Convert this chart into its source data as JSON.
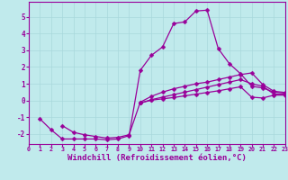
{
  "background_color": "#c0eaec",
  "grid_color": "#a8d8dc",
  "line_color": "#990099",
  "marker": "D",
  "markersize": 2.5,
  "linewidth": 0.9,
  "xlabel": "Windchill (Refroidissement éolien,°C)",
  "xlabel_fontsize": 6.5,
  "ytick_labels": [
    "-2",
    "-1",
    "0",
    "1",
    "2",
    "3",
    "4",
    "5"
  ],
  "ytick_vals": [
    -2,
    -1,
    0,
    1,
    2,
    3,
    4,
    5
  ],
  "xtick_vals": [
    0,
    1,
    2,
    3,
    4,
    5,
    6,
    7,
    8,
    9,
    10,
    11,
    12,
    13,
    14,
    15,
    16,
    17,
    18,
    19,
    20,
    21,
    22,
    23
  ],
  "xlim": [
    0,
    23
  ],
  "ylim": [
    -2.6,
    5.9
  ],
  "series": [
    [
      1,
      -1.1,
      2,
      -1.75,
      3,
      -2.3,
      4,
      -2.3,
      5,
      -2.3,
      6,
      -2.3,
      7,
      -2.35,
      8,
      -2.3,
      9,
      -2.1,
      10,
      1.8,
      11,
      2.7,
      12,
      3.2,
      13,
      4.6,
      14,
      4.7,
      15,
      5.35,
      16,
      5.4,
      17,
      3.1,
      18,
      2.2,
      19,
      1.6,
      20,
      0.85,
      21,
      0.75,
      22,
      0.5,
      23,
      0.45
    ],
    [
      3,
      -1.5,
      4,
      -1.9,
      5,
      -2.05,
      6,
      -2.15,
      7,
      -2.25,
      8,
      -2.2,
      9,
      -2.05,
      10,
      -0.1,
      11,
      0.25,
      12,
      0.5,
      13,
      0.7,
      14,
      0.85,
      15,
      1.0,
      16,
      1.1,
      17,
      1.25,
      18,
      1.4,
      19,
      1.55,
      20,
      1.65,
      21,
      0.95,
      22,
      0.55,
      23,
      0.48
    ],
    [
      10,
      -0.15,
      11,
      0.05,
      12,
      0.2,
      13,
      0.35,
      14,
      0.5,
      15,
      0.65,
      16,
      0.8,
      17,
      0.95,
      18,
      1.1,
      19,
      1.25,
      20,
      1.0,
      21,
      0.85,
      22,
      0.38,
      23,
      0.38
    ],
    [
      10,
      -0.15,
      11,
      0.02,
      12,
      0.1,
      13,
      0.18,
      14,
      0.28,
      15,
      0.38,
      16,
      0.48,
      17,
      0.58,
      18,
      0.7,
      19,
      0.82,
      20,
      0.2,
      21,
      0.15,
      22,
      0.32,
      23,
      0.32
    ]
  ]
}
